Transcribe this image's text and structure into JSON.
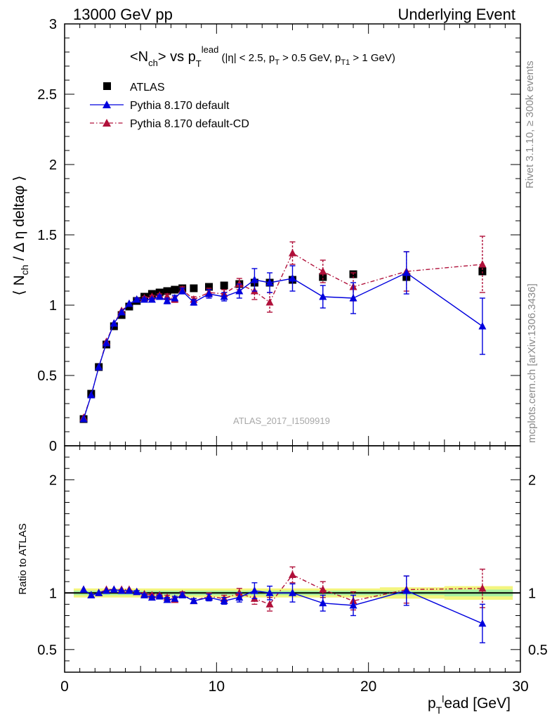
{
  "header": {
    "left": "13000 GeV pp",
    "right": "Underlying Event"
  },
  "side_labels": {
    "rivet": "Rivet 3.1.10, ≥ 300k events",
    "mcplots": "mcplots.cern.ch [arXiv:1306.3436]"
  },
  "watermark": "ATLAS_2017_I1509919",
  "colors": {
    "atlas": "#000000",
    "default": "#0000dd",
    "cd": "#b0103a",
    "band_outer": "#f3f57f",
    "band_inner": "#a6f0a0"
  },
  "chart_data": [
    {
      "type": "scatter",
      "title": "<N_ch> vs p_T^lead (|η| < 2.5, p_T > 0.5 GeV, p_T1 > 1 GeV)",
      "ylabel": "⟨ N_ch / Δη deltaφ ⟩",
      "xlim": [
        0,
        30
      ],
      "ylim": [
        0,
        3
      ],
      "yticks": [
        0,
        0.5,
        1,
        1.5,
        2,
        2.5,
        3
      ],
      "xticks": [
        0,
        10,
        20,
        30
      ],
      "legend": [
        "ATLAS",
        "Pythia 8.170 default",
        "Pythia 8.170 default-CD"
      ],
      "legend_position": "top-left",
      "series": [
        {
          "name": "ATLAS",
          "x": [
            1.25,
            1.75,
            2.25,
            2.75,
            3.25,
            3.75,
            4.25,
            4.75,
            5.25,
            5.75,
            6.25,
            6.75,
            7.25,
            7.75,
            8.5,
            9.5,
            10.5,
            11.5,
            12.5,
            13.5,
            15.0,
            17.0,
            19.0,
            22.5,
            27.5
          ],
          "y": [
            0.19,
            0.37,
            0.56,
            0.72,
            0.85,
            0.93,
            0.99,
            1.03,
            1.06,
            1.08,
            1.09,
            1.1,
            1.11,
            1.12,
            1.12,
            1.13,
            1.14,
            1.15,
            1.16,
            1.16,
            1.18,
            1.2,
            1.22,
            1.2,
            1.24
          ]
        },
        {
          "name": "Pythia 8.170 default",
          "x": [
            1.25,
            1.75,
            2.25,
            2.75,
            3.25,
            3.75,
            4.25,
            4.75,
            5.25,
            5.75,
            6.25,
            6.75,
            7.25,
            7.75,
            8.5,
            9.5,
            10.5,
            11.5,
            12.5,
            13.5,
            15.0,
            17.0,
            19.0,
            22.5,
            27.5
          ],
          "y": [
            0.19,
            0.36,
            0.56,
            0.73,
            0.87,
            0.95,
            1.01,
            1.04,
            1.04,
            1.04,
            1.06,
            1.03,
            1.05,
            1.1,
            1.02,
            1.08,
            1.06,
            1.1,
            1.18,
            1.16,
            1.19,
            1.06,
            1.05,
            1.23,
            0.85
          ],
          "yerr": [
            0.0,
            0.0,
            0.0,
            0.0,
            0.0,
            0.0,
            0.0,
            0.01,
            0.01,
            0.01,
            0.01,
            0.02,
            0.02,
            0.02,
            0.02,
            0.03,
            0.03,
            0.05,
            0.08,
            0.07,
            0.09,
            0.08,
            0.11,
            0.15,
            0.2
          ]
        },
        {
          "name": "Pythia 8.170 default-CD",
          "x": [
            1.25,
            1.75,
            2.25,
            2.75,
            3.25,
            3.75,
            4.25,
            4.75,
            5.25,
            5.75,
            6.25,
            6.75,
            7.25,
            7.75,
            8.5,
            9.5,
            10.5,
            11.5,
            12.5,
            13.5,
            15.0,
            17.0,
            19.0,
            22.5,
            27.5
          ],
          "y": [
            0.2,
            0.36,
            0.56,
            0.74,
            0.87,
            0.96,
            1.01,
            1.04,
            1.05,
            1.06,
            1.07,
            1.06,
            1.04,
            1.11,
            1.04,
            1.09,
            1.08,
            1.15,
            1.1,
            1.02,
            1.37,
            1.24,
            1.13,
            1.24,
            1.29
          ],
          "yerr": [
            0.0,
            0.0,
            0.0,
            0.0,
            0.0,
            0.0,
            0.0,
            0.01,
            0.01,
            0.01,
            0.01,
            0.02,
            0.02,
            0.02,
            0.02,
            0.03,
            0.03,
            0.04,
            0.06,
            0.07,
            0.08,
            0.08,
            0.1,
            0.14,
            0.2
          ]
        }
      ]
    },
    {
      "type": "scatter",
      "ylabel": "Ratio to ATLAS",
      "xlabel": "p_T^lead [GeV]",
      "xlim": [
        0,
        30
      ],
      "ylim": [
        0.3,
        2.3
      ],
      "yticks": [
        0.5,
        1,
        2
      ],
      "xticks": [
        0,
        10,
        20,
        30
      ],
      "band_halfwidth_inner": [
        0.02,
        0.02,
        0.02,
        0.02,
        0.02,
        0.02,
        0.02,
        0.02,
        0.02,
        0.02,
        0.02,
        0.02,
        0.02,
        0.02,
        0.02,
        0.02,
        0.02,
        0.02,
        0.02,
        0.02,
        0.02,
        0.02,
        0.02,
        0.02,
        0.03
      ],
      "band_halfwidth_outer": [
        0.04,
        0.04,
        0.04,
        0.04,
        0.04,
        0.04,
        0.04,
        0.04,
        0.04,
        0.04,
        0.04,
        0.04,
        0.04,
        0.04,
        0.04,
        0.04,
        0.04,
        0.04,
        0.04,
        0.04,
        0.04,
        0.04,
        0.04,
        0.05,
        0.06
      ],
      "series": [
        {
          "name": "Pythia 8.170 default",
          "x": [
            1.25,
            1.75,
            2.25,
            2.75,
            3.25,
            3.75,
            4.25,
            4.75,
            5.25,
            5.75,
            6.25,
            6.75,
            7.25,
            7.75,
            8.5,
            9.5,
            10.5,
            11.5,
            12.5,
            13.5,
            15.0,
            17.0,
            19.0,
            22.5,
            27.5
          ],
          "y": [
            1.03,
            0.98,
            1.0,
            1.02,
            1.03,
            1.02,
            1.02,
            1.01,
            0.98,
            0.96,
            0.97,
            0.94,
            0.95,
            0.98,
            0.93,
            0.96,
            0.93,
            0.96,
            1.02,
            1.0,
            1.0,
            0.91,
            0.89,
            1.02,
            0.73
          ],
          "yerr": [
            0.0,
            0.0,
            0.0,
            0.0,
            0.0,
            0.0,
            0.0,
            0.01,
            0.01,
            0.01,
            0.01,
            0.02,
            0.02,
            0.02,
            0.02,
            0.03,
            0.03,
            0.04,
            0.07,
            0.06,
            0.08,
            0.07,
            0.09,
            0.13,
            0.17
          ]
        },
        {
          "name": "Pythia 8.170 default-CD",
          "x": [
            1.25,
            1.75,
            2.25,
            2.75,
            3.25,
            3.75,
            4.25,
            4.75,
            5.25,
            5.75,
            6.25,
            6.75,
            7.25,
            7.75,
            8.5,
            9.5,
            10.5,
            11.5,
            12.5,
            13.5,
            15.0,
            17.0,
            19.0,
            22.5,
            27.5
          ],
          "y": [
            1.03,
            0.98,
            1.0,
            1.03,
            1.03,
            1.03,
            1.03,
            1.01,
            0.99,
            0.98,
            0.98,
            0.96,
            0.94,
            0.99,
            0.93,
            0.97,
            0.95,
            1.0,
            0.95,
            0.9,
            1.16,
            1.03,
            0.93,
            1.03,
            1.04
          ],
          "yerr": [
            0.0,
            0.0,
            0.0,
            0.0,
            0.0,
            0.0,
            0.0,
            0.01,
            0.01,
            0.01,
            0.01,
            0.02,
            0.02,
            0.02,
            0.02,
            0.03,
            0.03,
            0.04,
            0.05,
            0.06,
            0.07,
            0.07,
            0.08,
            0.12,
            0.17
          ]
        }
      ]
    }
  ]
}
